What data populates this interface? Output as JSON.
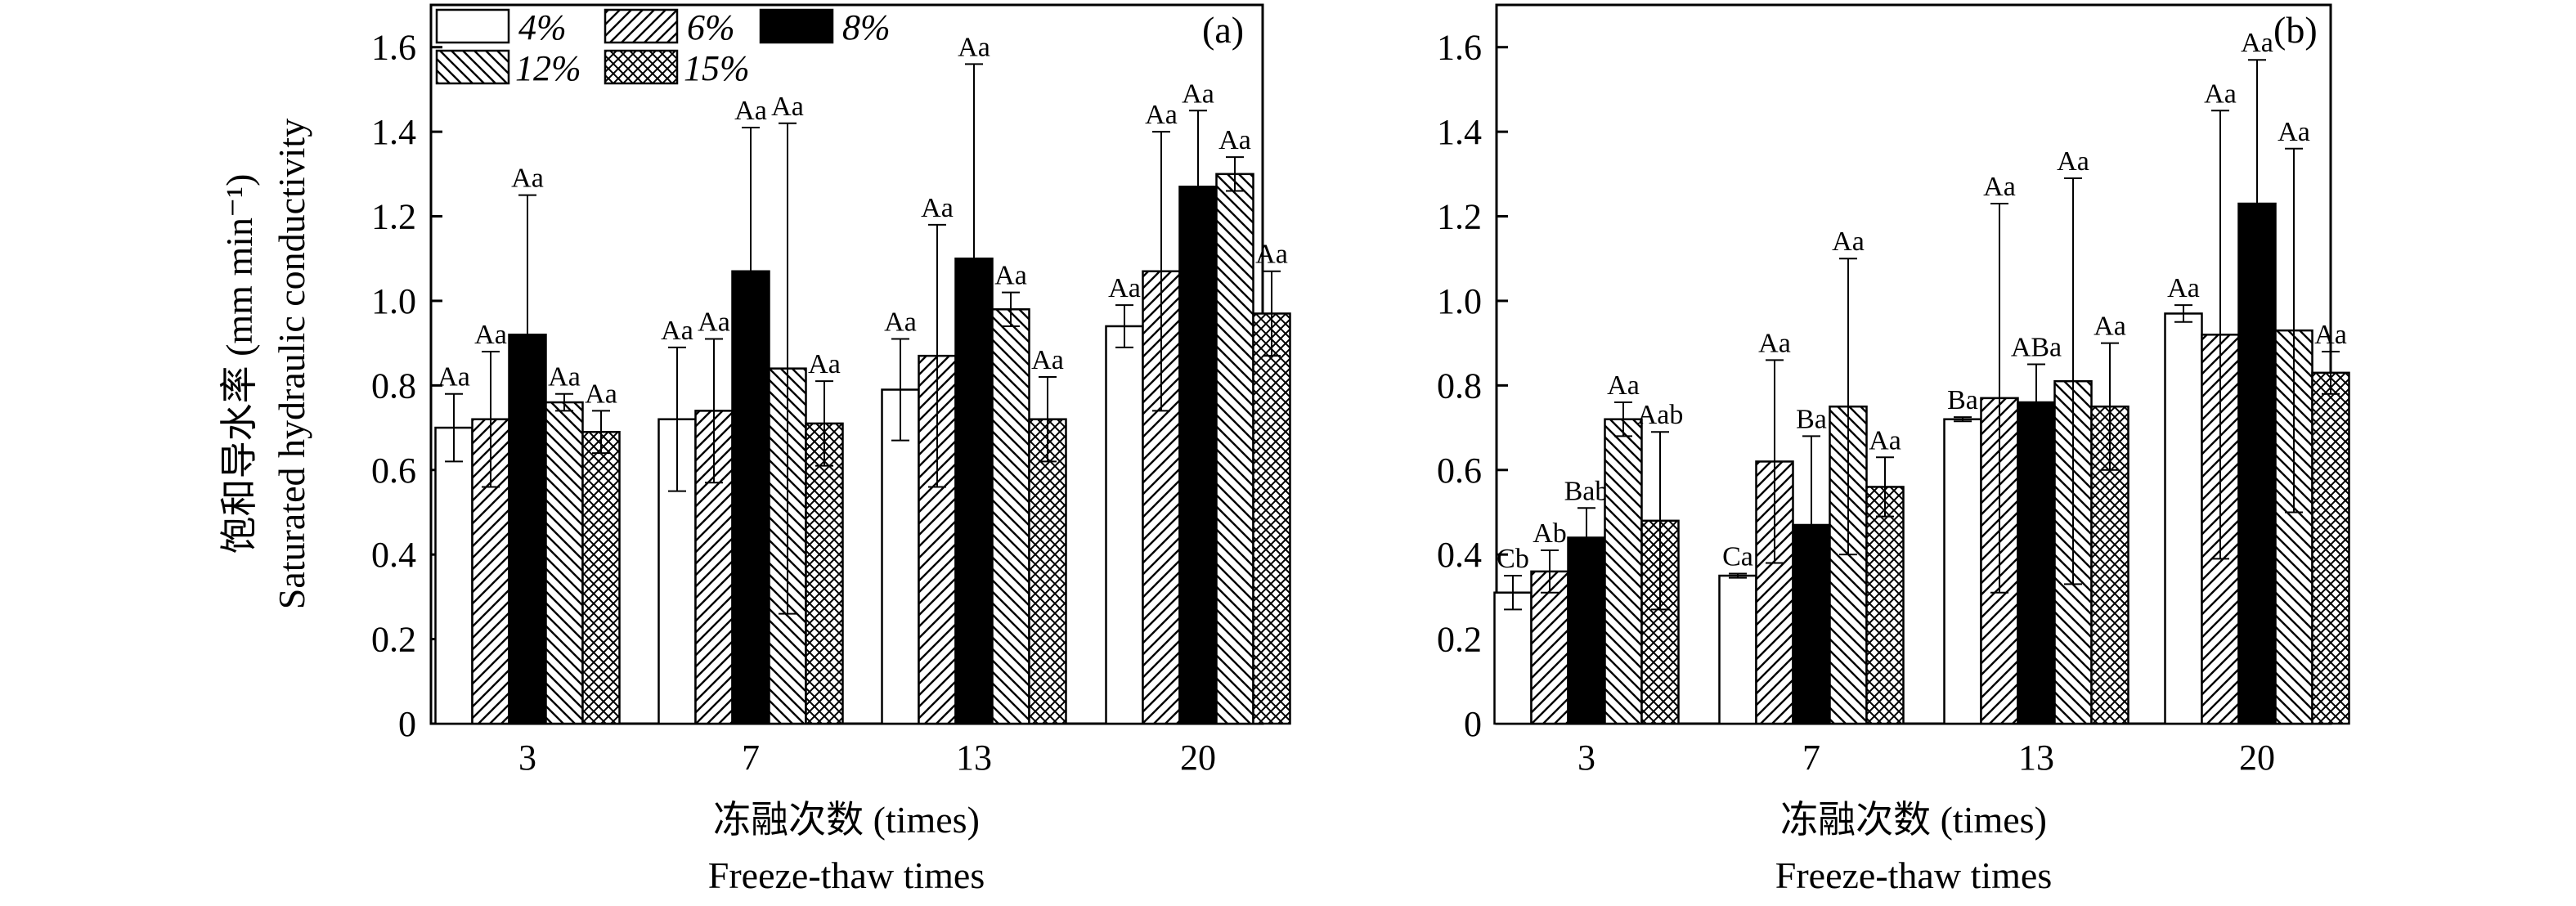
{
  "chart_data": [
    {
      "type": "bar",
      "panel_label": "(a)",
      "categories": [
        "3",
        "7",
        "13",
        "20"
      ],
      "series": [
        {
          "name": "4%",
          "values": [
            0.7,
            0.72,
            0.79,
            0.94
          ],
          "errors": [
            0.08,
            0.17,
            0.12,
            0.05
          ],
          "sig": [
            "Aa",
            "Aa",
            "Aa",
            "Aa"
          ]
        },
        {
          "name": "6%",
          "values": [
            0.72,
            0.74,
            0.87,
            1.07
          ],
          "errors": [
            0.16,
            0.17,
            0.31,
            0.33
          ],
          "sig": [
            "Aa",
            "Aa",
            "Aa",
            "Aa"
          ]
        },
        {
          "name": "8%",
          "values": [
            0.92,
            1.07,
            1.1,
            1.27
          ],
          "errors": [
            0.33,
            0.34,
            0.46,
            0.18
          ],
          "sig": [
            "Aa",
            "Aa",
            "Aa",
            "Aa"
          ]
        },
        {
          "name": "12%",
          "values": [
            0.76,
            0.84,
            0.98,
            1.3
          ],
          "errors": [
            0.02,
            0.58,
            0.04,
            0.04
          ],
          "sig": [
            "Aa",
            "Aa",
            "Aa",
            "Aa"
          ]
        },
        {
          "name": "15%",
          "values": [
            0.69,
            0.71,
            0.72,
            0.97
          ],
          "errors": [
            0.05,
            0.1,
            0.1,
            0.1
          ],
          "sig": [
            "Aa",
            "Aa",
            "Aa",
            "Aa"
          ]
        }
      ],
      "ylabel_zh": "饱和导水率 (mm min⁻¹)",
      "ylabel_en": "Saturated hydraulic conductivity",
      "xlabel_zh": "冻融次数 (times)",
      "xlabel_en": "Freeze-thaw times",
      "ylim": [
        0,
        1.7
      ],
      "yticks": [
        "0",
        "0.2",
        "0.4",
        "0.6",
        "0.8",
        "1.0",
        "1.2",
        "1.4",
        "1.6"
      ],
      "legend": "top-left, inside plot",
      "grid": false
    },
    {
      "type": "bar",
      "panel_label": "(b)",
      "categories": [
        "3",
        "7",
        "13",
        "20"
      ],
      "series": [
        {
          "name": "4%",
          "values": [
            0.31,
            0.35,
            0.72,
            0.97
          ],
          "errors": [
            0.04,
            0.005,
            0.005,
            0.02
          ],
          "sig": [
            "Cb",
            "Ca",
            "Ba",
            "Aa"
          ]
        },
        {
          "name": "6%",
          "values": [
            0.36,
            0.62,
            0.77,
            0.92
          ],
          "errors": [
            0.05,
            0.24,
            0.46,
            0.53
          ],
          "sig": [
            "Ab",
            "Aa",
            "Aa",
            "Aa"
          ]
        },
        {
          "name": "8%",
          "values": [
            0.44,
            0.47,
            0.76,
            1.23
          ],
          "errors": [
            0.07,
            0.21,
            0.09,
            0.34
          ],
          "sig": [
            "Bab",
            "Ba",
            "ABa",
            "Aa"
          ]
        },
        {
          "name": "12%",
          "values": [
            0.72,
            0.75,
            0.81,
            0.93
          ],
          "errors": [
            0.04,
            0.35,
            0.48,
            0.43
          ],
          "sig": [
            "Aa",
            "Aa",
            "Aa",
            "Aa"
          ]
        },
        {
          "name": "15%",
          "values": [
            0.48,
            0.56,
            0.75,
            0.83
          ],
          "errors": [
            0.21,
            0.07,
            0.15,
            0.05
          ],
          "sig": [
            "Aab",
            "Aa",
            "Aa",
            "Aa"
          ]
        }
      ],
      "xlabel_zh": "冻融次数 (times)",
      "xlabel_en": "Freeze-thaw times",
      "ylim": [
        0,
        1.7
      ],
      "yticks": [
        "0",
        "0.2",
        "0.4",
        "0.6",
        "0.8",
        "1.0",
        "1.2",
        "1.4",
        "1.6"
      ],
      "grid": false
    }
  ],
  "colors": {
    "axis": "#000000",
    "bar_fill": "#ffffff",
    "solid": "#000000"
  },
  "patterns": [
    "empty",
    "diagonal-up",
    "solid",
    "diagonal-down",
    "crosshatch"
  ]
}
